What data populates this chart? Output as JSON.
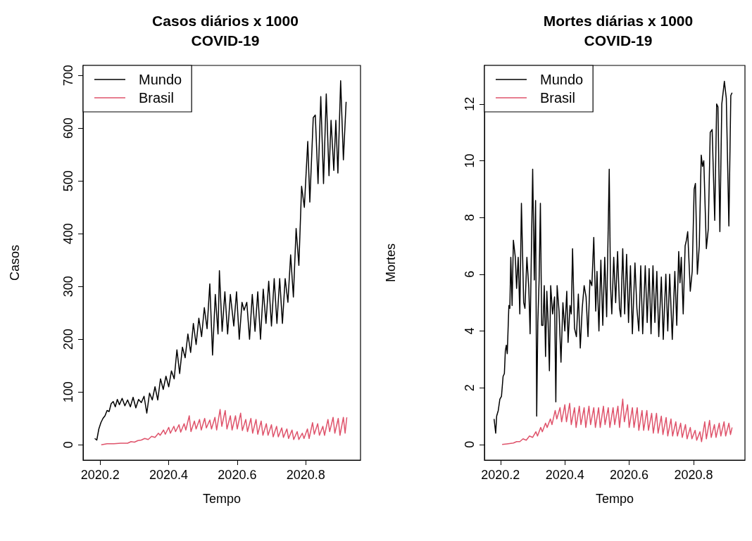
{
  "chart_data": [
    {
      "type": "line",
      "title": "Casos diários x 1000\nCOVID-19",
      "xlabel": "Tempo",
      "ylabel": "Casos",
      "xlim": [
        2020.15,
        2020.96
      ],
      "xticks": [
        2020.2,
        2020.4,
        2020.6,
        2020.8
      ],
      "ylim": [
        -29,
        719
      ],
      "yticks": [
        0,
        100,
        200,
        300,
        400,
        500,
        600,
        700
      ],
      "legend": "top left",
      "grid": false,
      "series": [
        {
          "name": "Mundo",
          "color": "#000000",
          "x": [
            2020.184,
            2020.19,
            2020.196,
            2020.202,
            2020.208,
            2020.214,
            2020.22,
            2020.226,
            2020.232,
            2020.238,
            2020.244,
            2020.25,
            2020.256,
            2020.264,
            2020.272,
            2020.28,
            2020.288,
            2020.296,
            2020.304,
            2020.312,
            2020.32,
            2020.328,
            2020.336,
            2020.344,
            2020.352,
            2020.36,
            2020.368,
            2020.376,
            2020.384,
            2020.392,
            2020.4,
            2020.408,
            2020.416,
            2020.424,
            2020.432,
            2020.44,
            2020.448,
            2020.456,
            2020.464,
            2020.472,
            2020.48,
            2020.488,
            2020.496,
            2020.504,
            2020.512,
            2020.52,
            2020.528,
            2020.536,
            2020.544,
            2020.548,
            2020.556,
            2020.564,
            2020.572,
            2020.58,
            2020.59,
            2020.598,
            2020.606,
            2020.614,
            2020.62,
            2020.628,
            2020.636,
            2020.644,
            2020.652,
            2020.66,
            2020.668,
            2020.676,
            2020.684,
            2020.692,
            2020.7,
            2020.708,
            2020.716,
            2020.724,
            2020.732,
            2020.74,
            2020.748,
            2020.756,
            2020.764,
            2020.772,
            2020.78,
            2020.788,
            2020.796,
            2020.806,
            2020.812,
            2020.822,
            2020.828,
            2020.836,
            2020.844,
            2020.852,
            2020.86,
            2020.868,
            2020.874,
            2020.882,
            2020.888,
            2020.894,
            2020.902,
            2020.91,
            2020.918
          ],
          "values": [
            12,
            9,
            30,
            42,
            50,
            55,
            65,
            63,
            78,
            82,
            72,
            86,
            76,
            88,
            74,
            85,
            72,
            90,
            70,
            86,
            80,
            92,
            60,
            98,
            85,
            110,
            85,
            125,
            105,
            130,
            110,
            140,
            125,
            180,
            135,
            185,
            165,
            210,
            175,
            230,
            190,
            240,
            205,
            260,
            220,
            305,
            170,
            285,
            210,
            330,
            215,
            290,
            210,
            285,
            225,
            290,
            200,
            270,
            255,
            270,
            200,
            285,
            215,
            290,
            200,
            295,
            230,
            310,
            225,
            315,
            230,
            315,
            230,
            315,
            270,
            360,
            280,
            410,
            340,
            490,
            450,
            575,
            460,
            620,
            625,
            495,
            660,
            495,
            665,
            510,
            615,
            520,
            615,
            515,
            690,
            540,
            650
          ]
        },
        {
          "name": "Brasil",
          "color": "#df536b",
          "x": [
            2020.203,
            2020.22,
            2020.24,
            2020.26,
            2020.28,
            2020.29,
            2020.3,
            2020.31,
            2020.32,
            2020.33,
            2020.34,
            2020.35,
            2020.36,
            2020.37,
            2020.375,
            2020.385,
            2020.39,
            2020.4,
            2020.405,
            2020.415,
            2020.42,
            2020.43,
            2020.435,
            2020.445,
            2020.45,
            2020.46,
            2020.465,
            2020.475,
            2020.48,
            2020.49,
            2020.495,
            2020.505,
            2020.51,
            2020.52,
            2020.525,
            2020.535,
            2020.54,
            2020.55,
            2020.555,
            2020.565,
            2020.57,
            2020.58,
            2020.585,
            2020.595,
            2020.6,
            2020.61,
            2020.615,
            2020.625,
            2020.63,
            2020.64,
            2020.645,
            2020.655,
            2020.66,
            2020.67,
            2020.675,
            2020.685,
            2020.69,
            2020.7,
            2020.705,
            2020.715,
            2020.72,
            2020.73,
            2020.735,
            2020.745,
            2020.75,
            2020.76,
            2020.765,
            2020.775,
            2020.78,
            2020.79,
            2020.795,
            2020.805,
            2020.81,
            2020.82,
            2020.825,
            2020.835,
            2020.84,
            2020.85,
            2020.855,
            2020.865,
            2020.87,
            2020.88,
            2020.885,
            2020.895,
            2020.9,
            2020.91,
            2020.915,
            2020.92
          ],
          "values": [
            0,
            2,
            2,
            3,
            3,
            6,
            5,
            8,
            9,
            12,
            10,
            16,
            14,
            22,
            18,
            28,
            20,
            33,
            22,
            35,
            25,
            38,
            24,
            40,
            28,
            55,
            25,
            45,
            30,
            48,
            28,
            50,
            32,
            47,
            30,
            52,
            28,
            67,
            35,
            65,
            30,
            55,
            28,
            55,
            30,
            60,
            27,
            48,
            25,
            50,
            22,
            48,
            20,
            45,
            18,
            40,
            18,
            38,
            15,
            35,
            15,
            32,
            14,
            30,
            12,
            28,
            10,
            25,
            10,
            22,
            12,
            30,
            12,
            42,
            20,
            40,
            18,
            35,
            18,
            48,
            25,
            52,
            22,
            50,
            18,
            52,
            22,
            52
          ]
        }
      ]
    },
    {
      "type": "line",
      "title": "Mortes diárias x 1000\nCOVID-19",
      "xlabel": "Tempo",
      "ylabel": "Mortes",
      "xlim": [
        2020.15,
        2020.96
      ],
      "xticks": [
        2020.2,
        2020.4,
        2020.6,
        2020.8
      ],
      "ylim": [
        -0.55,
        13.36
      ],
      "yticks": [
        0,
        2,
        4,
        6,
        8,
        10,
        12
      ],
      "legend": "top left",
      "grid": false,
      "series": [
        {
          "name": "Mundo",
          "color": "#000000",
          "x": [
            2020.18,
            2020.185,
            2020.188,
            2020.193,
            2020.198,
            2020.203,
            2020.208,
            2020.212,
            2020.215,
            2020.218,
            2020.221,
            2020.226,
            2020.229,
            2020.232,
            2020.236,
            2020.24,
            2020.246,
            2020.25,
            2020.255,
            2020.26,
            2020.265,
            2020.272,
            2020.276,
            2020.282,
            2020.288,
            2020.292,
            2020.3,
            2020.305,
            2020.309,
            2020.3125,
            2020.316,
            2020.32,
            2020.324,
            2020.328,
            2020.332,
            2020.336,
            2020.34,
            2020.344,
            2020.348,
            2020.352,
            2020.356,
            2020.362,
            2020.368,
            2020.372,
            2020.376,
            2020.382,
            2020.388,
            2020.394,
            2020.4,
            2020.406,
            2020.41,
            2020.416,
            2020.42,
            2020.424,
            2020.43,
            2020.436,
            2020.442,
            2020.448,
            2020.454,
            2020.46,
            2020.466,
            2020.472,
            2020.478,
            2020.484,
            2020.49,
            2020.496,
            2020.5,
            2020.506,
            2020.512,
            2020.518,
            2020.524,
            2020.53,
            2020.538,
            2020.542,
            2020.546,
            2020.552,
            2020.558,
            2020.564,
            2020.57,
            2020.574,
            2020.58,
            2020.586,
            2020.592,
            2020.598,
            2020.604,
            2020.61,
            2020.618,
            2020.624,
            2020.63,
            2020.636,
            2020.642,
            2020.65,
            2020.656,
            2020.662,
            2020.668,
            2020.674,
            2020.68,
            2020.686,
            2020.692,
            2020.7,
            2020.706,
            2020.714,
            2020.72,
            2020.726,
            2020.734,
            2020.742,
            2020.748,
            2020.754,
            2020.758,
            2020.762,
            2020.768,
            2020.774,
            2020.778,
            2020.782,
            2020.79,
            2020.796,
            2020.802,
            2020.806,
            2020.812,
            2020.818,
            2020.824,
            2020.828,
            2020.832,
            2020.84,
            2020.846,
            2020.852,
            2020.858,
            2020.866,
            2020.872,
            2020.876,
            2020.882,
            2020.888,
            2020.896,
            2020.902,
            2020.91,
            2020.916,
            2020.92
          ],
          "values": [
            0.9,
            0.4,
            1.0,
            1.2,
            1.6,
            1.7,
            2.4,
            2.5,
            3.3,
            3.5,
            3.2,
            4.9,
            4.8,
            6.6,
            4.9,
            7.2,
            6.6,
            5.5,
            6.6,
            4.6,
            8.5,
            5.0,
            4.8,
            6.6,
            5.5,
            3.9,
            9.7,
            5.8,
            8.6,
            1.0,
            4.3,
            5.8,
            8.5,
            4.2,
            4.2,
            5.6,
            3.1,
            5.4,
            4.3,
            2.6,
            5.6,
            4.6,
            5.2,
            1.5,
            5.6,
            4.7,
            2.9,
            5.0,
            4.0,
            5.4,
            3.6,
            4.9,
            4.6,
            6.9,
            4.1,
            3.8,
            5.3,
            3.4,
            4.8,
            5.6,
            5.2,
            3.8,
            5.8,
            5.6,
            7.3,
            4.7,
            6.1,
            4.0,
            6.5,
            4.2,
            6.6,
            4.5,
            9.7,
            5.6,
            4.6,
            6.6,
            5.0,
            6.8,
            4.8,
            4.5,
            6.9,
            4.6,
            6.7,
            4.3,
            6.3,
            3.9,
            6.4,
            4.8,
            4.0,
            6.3,
            3.9,
            6.3,
            4.3,
            6.2,
            3.9,
            6.3,
            4.3,
            6.1,
            3.8,
            5.9,
            3.7,
            6.0,
            4.0,
            6.0,
            3.7,
            6.1,
            4.2,
            6.8,
            5.7,
            6.6,
            4.6,
            7.0,
            7.2,
            7.5,
            5.4,
            6.1,
            9.0,
            9.2,
            6.0,
            7.0,
            10.2,
            9.8,
            10.0,
            6.9,
            7.6,
            11.0,
            11.1,
            7.9,
            12.0,
            11.9,
            7.5,
            12.0,
            12.8,
            12.2,
            7.7,
            12.3,
            12.4
          ]
        },
        {
          "name": "Brasil",
          "color": "#df536b",
          "x": [
            2020.205,
            2020.22,
            2020.24,
            2020.25,
            2020.26,
            2020.27,
            2020.28,
            2020.29,
            2020.3,
            2020.31,
            2020.315,
            2020.325,
            2020.33,
            2020.34,
            2020.345,
            2020.355,
            2020.36,
            2020.37,
            2020.375,
            2020.385,
            2020.39,
            2020.4,
            2020.405,
            2020.415,
            2020.42,
            2020.43,
            2020.435,
            2020.445,
            2020.45,
            2020.46,
            2020.465,
            2020.475,
            2020.48,
            2020.49,
            2020.495,
            2020.505,
            2020.51,
            2020.52,
            2020.525,
            2020.535,
            2020.54,
            2020.55,
            2020.555,
            2020.565,
            2020.57,
            2020.58,
            2020.585,
            2020.595,
            2020.6,
            2020.61,
            2020.615,
            2020.625,
            2020.63,
            2020.64,
            2020.645,
            2020.655,
            2020.66,
            2020.67,
            2020.675,
            2020.685,
            2020.69,
            2020.7,
            2020.705,
            2020.715,
            2020.72,
            2020.73,
            2020.735,
            2020.745,
            2020.75,
            2020.76,
            2020.765,
            2020.775,
            2020.78,
            2020.79,
            2020.795,
            2020.805,
            2020.81,
            2020.82,
            2020.825,
            2020.835,
            2020.84,
            2020.85,
            2020.855,
            2020.865,
            2020.87,
            2020.88,
            2020.885,
            2020.895,
            2020.9,
            2020.91,
            2020.915,
            2020.92
          ],
          "values": [
            0,
            0.02,
            0.05,
            0.1,
            0.1,
            0.2,
            0.15,
            0.3,
            0.25,
            0.45,
            0.3,
            0.6,
            0.45,
            0.75,
            0.6,
            0.9,
            0.7,
            1.2,
            0.9,
            1.3,
            0.8,
            1.4,
            0.8,
            1.45,
            0.7,
            1.3,
            0.6,
            1.35,
            0.7,
            1.3,
            0.6,
            1.35,
            0.7,
            1.3,
            0.6,
            1.3,
            0.6,
            1.35,
            0.7,
            1.3,
            0.6,
            1.3,
            0.7,
            1.35,
            0.6,
            1.6,
            0.8,
            1.4,
            0.6,
            1.3,
            0.6,
            1.3,
            0.5,
            1.2,
            0.5,
            1.2,
            0.5,
            1.1,
            0.4,
            1.1,
            0.4,
            1.0,
            0.35,
            0.95,
            0.3,
            0.9,
            0.3,
            0.8,
            0.3,
            0.75,
            0.25,
            0.7,
            0.2,
            0.6,
            0.2,
            0.5,
            0.15,
            0.45,
            0.1,
            0.8,
            0.2,
            0.85,
            0.25,
            0.7,
            0.25,
            0.75,
            0.3,
            0.8,
            0.3,
            0.75,
            0.35,
            0.6
          ]
        }
      ]
    }
  ]
}
